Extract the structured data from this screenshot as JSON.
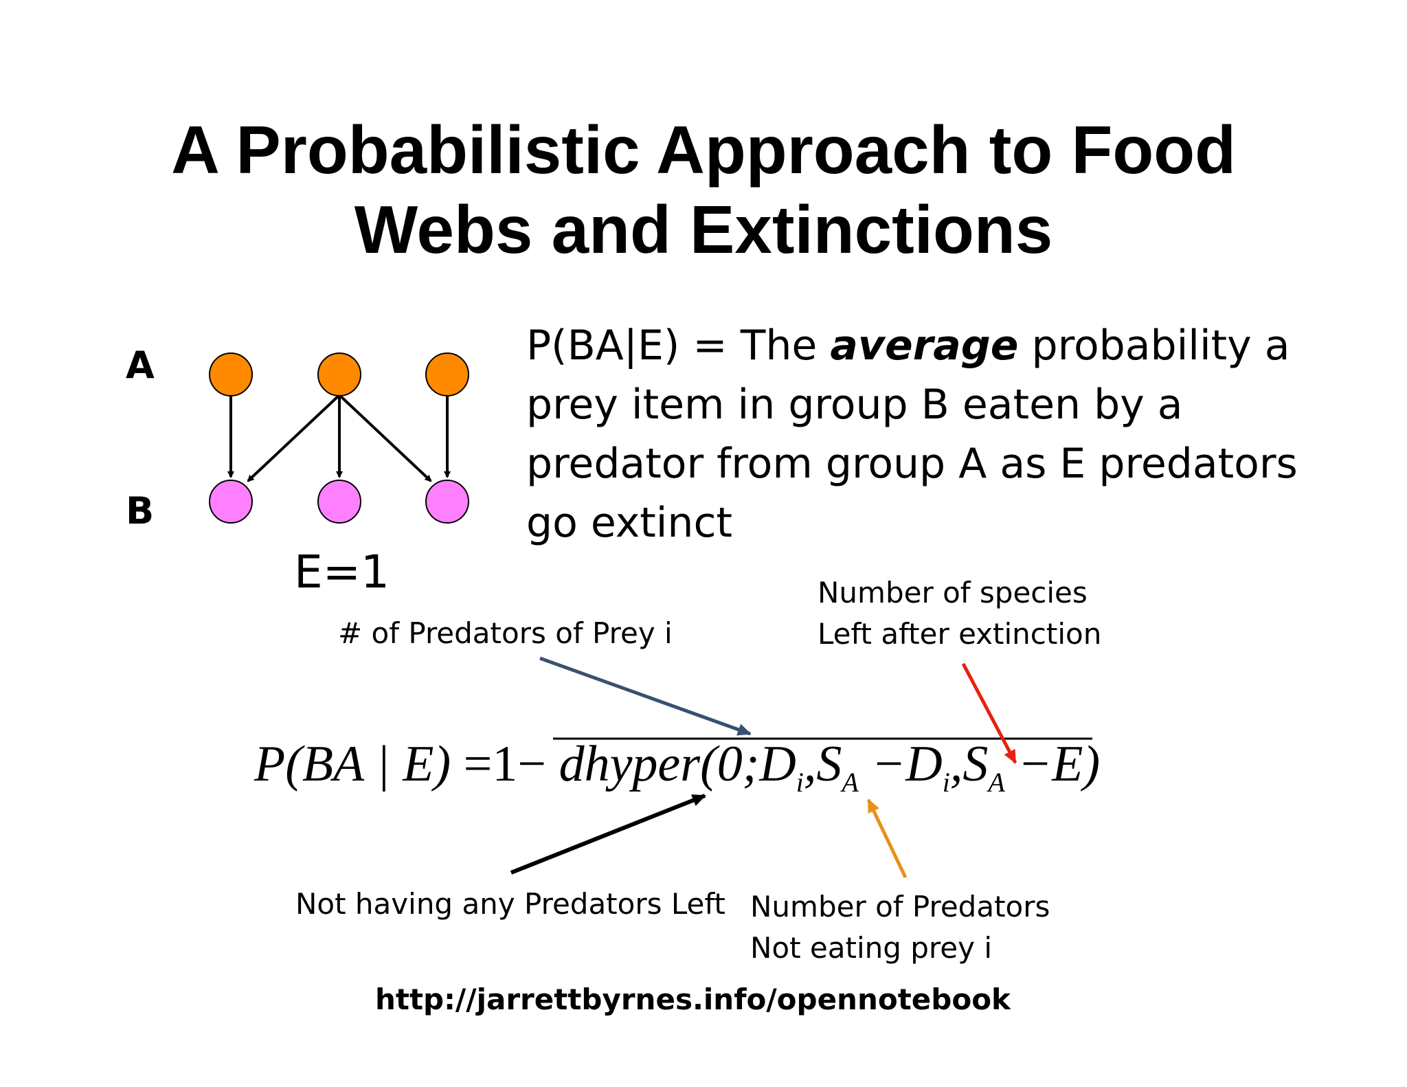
{
  "slide": {
    "title_line1": "A Probabilistic Approach to Food",
    "title_line2": "Webs and Extinctions",
    "diagram": {
      "group_a_label": "A",
      "group_b_label": "B",
      "extinction_label": "E=1",
      "predator_color": "#ff8a00",
      "prey_color": "#ff80ff"
    },
    "definition": {
      "prefix": "P(BA|E) = The",
      "emphasis": "average",
      "suffix": "probability a prey item in group B eaten by a predator from group A as E predators go extinct"
    },
    "formula": {
      "lhs": "P(BA | E)",
      "equals_one_minus": "=1−",
      "func": "dhyper(0;D",
      "sub_i": "i",
      "comma_s": ",S",
      "sub_a": "A",
      "minus_d": "−D",
      "sub_i2": "i",
      "comma_s2": ",S",
      "sub_a2": "A",
      "minus_e": "−E)"
    },
    "annotations": {
      "predators_of_prey": "# of Predators of Prey i",
      "species_left_line1": "Number of species",
      "species_left_line2": "Left after extinction",
      "no_predators_left": "Not having any Predators Left",
      "predators_not_eating_line1": "Number of Predators",
      "predators_not_eating_line2": "Not eating prey i"
    },
    "url": "http://jarrettbyrnes.info/opennotebook",
    "arrow_colors": {
      "predators_of_prey": "#3a5070",
      "species_left": "#e82010",
      "no_predators_left": "#000000",
      "predators_not_eating": "#e8901a"
    }
  }
}
